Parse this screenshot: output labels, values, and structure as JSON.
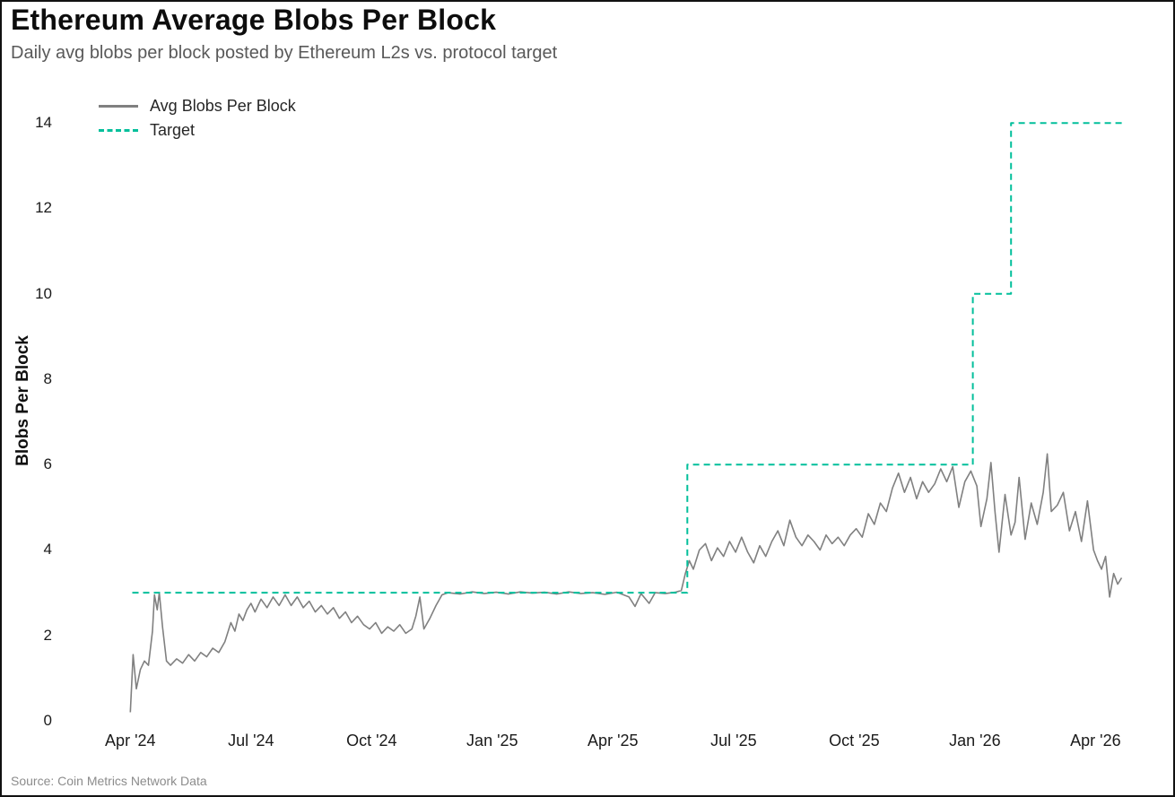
{
  "chart_data": {
    "type": "line",
    "title": "Ethereum Average Blobs Per Block",
    "subtitle": "Daily avg blobs per block posted by Ethereum L2s vs. protocol target",
    "ylabel": "Blobs Per Block",
    "xlabel": "",
    "source": "Source: Coin Metrics Network Data",
    "grid": false,
    "legend_position": "top-left-inside",
    "xlim": [
      -1.3,
      24.95
    ],
    "ylim": [
      0,
      14.95
    ],
    "yticks": [
      0,
      2,
      4,
      6,
      8,
      10,
      12,
      14
    ],
    "xticks": [
      {
        "pos": 0,
        "label": "Apr '24"
      },
      {
        "pos": 3,
        "label": "Jul '24"
      },
      {
        "pos": 6,
        "label": "Oct '24"
      },
      {
        "pos": 9,
        "label": "Jan '25"
      },
      {
        "pos": 12,
        "label": "Apr '25"
      },
      {
        "pos": 15,
        "label": "Jul '25"
      },
      {
        "pos": 18,
        "label": "Oct '25"
      },
      {
        "pos": 21,
        "label": "Jan '26"
      },
      {
        "pos": 24,
        "label": "Apr '26"
      }
    ],
    "x_unit": "months since 2024-04",
    "series": [
      {
        "name": "Avg Blobs Per Block",
        "color": "#808080",
        "width": 1.6,
        "dash": null,
        "data_name": "avg-blobs-line",
        "points": [
          [
            0.0,
            0.2
          ],
          [
            0.07,
            1.55
          ],
          [
            0.15,
            0.75
          ],
          [
            0.25,
            1.2
          ],
          [
            0.35,
            1.4
          ],
          [
            0.45,
            1.3
          ],
          [
            0.55,
            2.1
          ],
          [
            0.6,
            2.95
          ],
          [
            0.67,
            2.6
          ],
          [
            0.72,
            3.0
          ],
          [
            0.8,
            2.2
          ],
          [
            0.9,
            1.4
          ],
          [
            1.0,
            1.3
          ],
          [
            1.15,
            1.45
          ],
          [
            1.3,
            1.35
          ],
          [
            1.45,
            1.55
          ],
          [
            1.6,
            1.4
          ],
          [
            1.75,
            1.6
          ],
          [
            1.9,
            1.5
          ],
          [
            2.05,
            1.7
          ],
          [
            2.2,
            1.6
          ],
          [
            2.35,
            1.85
          ],
          [
            2.5,
            2.3
          ],
          [
            2.6,
            2.1
          ],
          [
            2.7,
            2.5
          ],
          [
            2.8,
            2.35
          ],
          [
            2.9,
            2.6
          ],
          [
            3.0,
            2.75
          ],
          [
            3.1,
            2.55
          ],
          [
            3.25,
            2.85
          ],
          [
            3.4,
            2.65
          ],
          [
            3.55,
            2.9
          ],
          [
            3.7,
            2.7
          ],
          [
            3.85,
            2.95
          ],
          [
            4.0,
            2.7
          ],
          [
            4.15,
            2.9
          ],
          [
            4.3,
            2.65
          ],
          [
            4.45,
            2.8
          ],
          [
            4.6,
            2.55
          ],
          [
            4.75,
            2.7
          ],
          [
            4.9,
            2.5
          ],
          [
            5.05,
            2.65
          ],
          [
            5.2,
            2.4
          ],
          [
            5.35,
            2.55
          ],
          [
            5.5,
            2.3
          ],
          [
            5.65,
            2.45
          ],
          [
            5.8,
            2.25
          ],
          [
            5.95,
            2.15
          ],
          [
            6.1,
            2.3
          ],
          [
            6.25,
            2.05
          ],
          [
            6.4,
            2.2
          ],
          [
            6.55,
            2.1
          ],
          [
            6.7,
            2.25
          ],
          [
            6.85,
            2.05
          ],
          [
            7.0,
            2.15
          ],
          [
            7.1,
            2.45
          ],
          [
            7.2,
            2.9
          ],
          [
            7.3,
            2.15
          ],
          [
            7.45,
            2.4
          ],
          [
            7.6,
            2.7
          ],
          [
            7.75,
            2.95
          ],
          [
            7.9,
            3.0
          ],
          [
            8.2,
            2.97
          ],
          [
            8.5,
            3.02
          ],
          [
            8.8,
            2.98
          ],
          [
            9.1,
            3.01
          ],
          [
            9.4,
            2.97
          ],
          [
            9.7,
            3.02
          ],
          [
            10.0,
            2.99
          ],
          [
            10.3,
            3.01
          ],
          [
            10.6,
            2.97
          ],
          [
            10.9,
            3.02
          ],
          [
            11.2,
            2.98
          ],
          [
            11.5,
            3.0
          ],
          [
            11.8,
            2.96
          ],
          [
            12.1,
            3.01
          ],
          [
            12.4,
            2.9
          ],
          [
            12.55,
            2.68
          ],
          [
            12.7,
            2.98
          ],
          [
            12.9,
            2.75
          ],
          [
            13.05,
            3.0
          ],
          [
            13.3,
            2.98
          ],
          [
            13.55,
            3.01
          ],
          [
            13.7,
            3.05
          ],
          [
            13.8,
            3.45
          ],
          [
            13.9,
            3.75
          ],
          [
            14.0,
            3.55
          ],
          [
            14.15,
            4.0
          ],
          [
            14.3,
            4.15
          ],
          [
            14.45,
            3.75
          ],
          [
            14.6,
            4.05
          ],
          [
            14.75,
            3.85
          ],
          [
            14.9,
            4.2
          ],
          [
            15.05,
            3.95
          ],
          [
            15.2,
            4.3
          ],
          [
            15.35,
            3.95
          ],
          [
            15.5,
            3.7
          ],
          [
            15.65,
            4.1
          ],
          [
            15.8,
            3.85
          ],
          [
            15.95,
            4.2
          ],
          [
            16.1,
            4.45
          ],
          [
            16.25,
            4.1
          ],
          [
            16.4,
            4.7
          ],
          [
            16.55,
            4.3
          ],
          [
            16.7,
            4.1
          ],
          [
            16.85,
            4.35
          ],
          [
            17.0,
            4.2
          ],
          [
            17.15,
            4.0
          ],
          [
            17.3,
            4.35
          ],
          [
            17.45,
            4.15
          ],
          [
            17.6,
            4.3
          ],
          [
            17.75,
            4.1
          ],
          [
            17.9,
            4.35
          ],
          [
            18.05,
            4.5
          ],
          [
            18.2,
            4.3
          ],
          [
            18.35,
            4.85
          ],
          [
            18.5,
            4.6
          ],
          [
            18.65,
            5.1
          ],
          [
            18.8,
            4.9
          ],
          [
            18.95,
            5.45
          ],
          [
            19.1,
            5.8
          ],
          [
            19.25,
            5.35
          ],
          [
            19.4,
            5.7
          ],
          [
            19.55,
            5.2
          ],
          [
            19.7,
            5.6
          ],
          [
            19.85,
            5.35
          ],
          [
            20.0,
            5.55
          ],
          [
            20.15,
            5.9
          ],
          [
            20.3,
            5.6
          ],
          [
            20.45,
            5.95
          ],
          [
            20.6,
            5.0
          ],
          [
            20.75,
            5.6
          ],
          [
            20.9,
            5.85
          ],
          [
            21.05,
            5.5
          ],
          [
            21.15,
            4.55
          ],
          [
            21.3,
            5.2
          ],
          [
            21.4,
            6.05
          ],
          [
            21.5,
            4.9
          ],
          [
            21.6,
            3.95
          ],
          [
            21.75,
            5.3
          ],
          [
            21.9,
            4.35
          ],
          [
            22.0,
            4.65
          ],
          [
            22.1,
            5.7
          ],
          [
            22.25,
            4.25
          ],
          [
            22.4,
            5.1
          ],
          [
            22.55,
            4.6
          ],
          [
            22.7,
            5.35
          ],
          [
            22.8,
            6.25
          ],
          [
            22.9,
            4.9
          ],
          [
            23.05,
            5.05
          ],
          [
            23.2,
            5.35
          ],
          [
            23.35,
            4.45
          ],
          [
            23.5,
            4.9
          ],
          [
            23.65,
            4.2
          ],
          [
            23.8,
            5.15
          ],
          [
            23.95,
            4.0
          ],
          [
            24.05,
            3.75
          ],
          [
            24.15,
            3.55
          ],
          [
            24.25,
            3.85
          ],
          [
            24.35,
            2.9
          ],
          [
            24.45,
            3.45
          ],
          [
            24.55,
            3.2
          ],
          [
            24.65,
            3.35
          ]
        ]
      },
      {
        "name": "Target",
        "color": "#02bf9b",
        "width": 2,
        "dash": "7,5",
        "data_name": "target-line",
        "points": [
          [
            0.05,
            3
          ],
          [
            13.85,
            3
          ],
          [
            13.85,
            6
          ],
          [
            20.95,
            6
          ],
          [
            20.95,
            10
          ],
          [
            21.9,
            10
          ],
          [
            21.9,
            14
          ],
          [
            24.7,
            14
          ]
        ]
      }
    ]
  }
}
